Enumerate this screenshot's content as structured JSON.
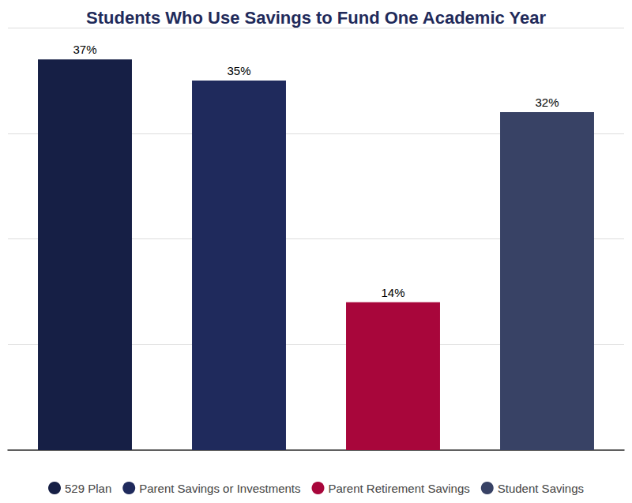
{
  "chart_data": {
    "type": "bar",
    "title": "Students Who Use Savings to Fund One Academic Year",
    "categories": [
      "529 Plan",
      "Parent Savings or Investments",
      "Parent Retirement Savings",
      "Student Savings"
    ],
    "values": [
      37,
      35,
      14,
      32
    ],
    "value_labels": [
      "37%",
      "35%",
      "14%",
      "32%"
    ],
    "colors": [
      "#161f45",
      "#1f2a5c",
      "#a8063b",
      "#384265"
    ],
    "ylim": [
      0,
      40
    ],
    "yticks": [
      0,
      10,
      20,
      30,
      40
    ],
    "grid": true,
    "legend": "bottom",
    "data_labels": true,
    "tick_labels": false
  }
}
